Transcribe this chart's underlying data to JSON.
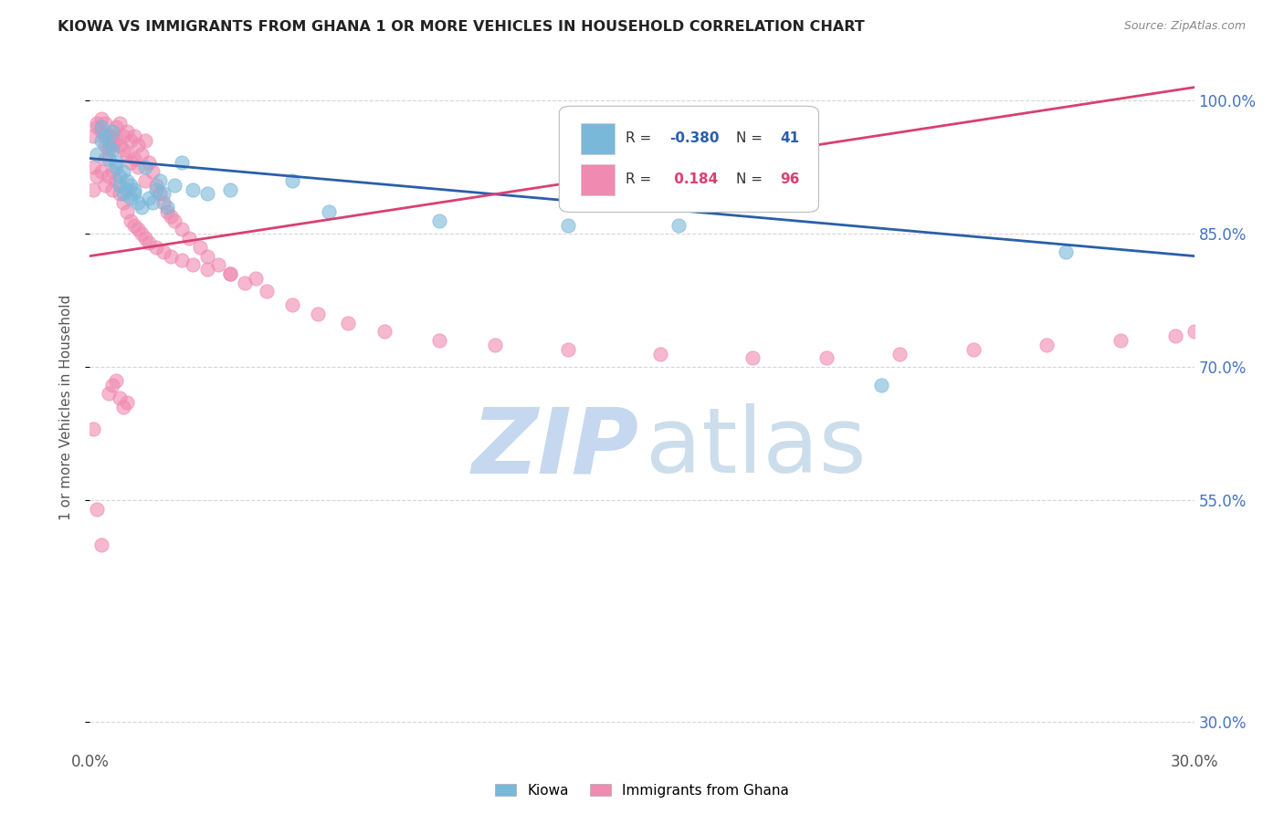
{
  "title": "KIOWA VS IMMIGRANTS FROM GHANA 1 OR MORE VEHICLES IN HOUSEHOLD CORRELATION CHART",
  "source": "Source: ZipAtlas.com",
  "ylabel": "1 or more Vehicles in Household",
  "ytick_vals": [
    30.0,
    55.0,
    70.0,
    85.0,
    100.0
  ],
  "ytick_labels": [
    "30.0%",
    "55.0%",
    "70.0%",
    "85.0%",
    "100.0%"
  ],
  "xmin": 0.0,
  "xmax": 0.3,
  "ymin": 27.0,
  "ymax": 104.0,
  "legend_r_blue": "-0.380",
  "legend_n_blue": "41",
  "legend_r_pink": "0.184",
  "legend_n_pink": "96",
  "blue_color": "#7ab8d9",
  "pink_color": "#f08ab0",
  "blue_line_color": "#2a5faa",
  "pink_line_color": "#d94070",
  "blue_line_y0": 93.5,
  "blue_line_y1": 82.5,
  "pink_line_y0": 82.5,
  "pink_line_y1": 101.5,
  "ytick_color": "#4472c4",
  "xtick_color": "#555555",
  "ylabel_color": "#555555",
  "title_color": "#222222",
  "source_color": "#888888",
  "grid_color": "#cccccc",
  "watermark_zip_color": "#c5d8f0",
  "watermark_atlas_color": "#9bbcd8",
  "legend_border_color": "#bbbbbb",
  "blue_scatter_x": [
    0.002,
    0.003,
    0.003,
    0.004,
    0.005,
    0.005,
    0.006,
    0.006,
    0.007,
    0.007,
    0.008,
    0.008,
    0.009,
    0.009,
    0.01,
    0.01,
    0.011,
    0.011,
    0.012,
    0.012,
    0.013,
    0.014,
    0.015,
    0.016,
    0.017,
    0.018,
    0.019,
    0.02,
    0.021,
    0.023,
    0.025,
    0.028,
    0.032,
    0.038,
    0.055,
    0.065,
    0.095,
    0.13,
    0.16,
    0.215,
    0.265
  ],
  "blue_scatter_y": [
    94.0,
    95.5,
    97.0,
    96.0,
    95.0,
    93.5,
    96.5,
    94.5,
    93.0,
    92.5,
    91.5,
    90.5,
    92.0,
    89.5,
    91.0,
    90.0,
    90.5,
    89.0,
    90.0,
    89.5,
    88.5,
    88.0,
    92.5,
    89.0,
    88.5,
    90.0,
    91.0,
    89.5,
    88.0,
    90.5,
    93.0,
    90.0,
    89.5,
    90.0,
    91.0,
    87.5,
    86.5,
    86.0,
    86.0,
    68.0,
    83.0
  ],
  "pink_scatter_x": [
    0.001,
    0.001,
    0.002,
    0.002,
    0.002,
    0.003,
    0.003,
    0.003,
    0.004,
    0.004,
    0.005,
    0.005,
    0.005,
    0.006,
    0.006,
    0.006,
    0.007,
    0.007,
    0.007,
    0.008,
    0.008,
    0.008,
    0.009,
    0.009,
    0.009,
    0.01,
    0.01,
    0.01,
    0.011,
    0.011,
    0.012,
    0.012,
    0.013,
    0.013,
    0.014,
    0.015,
    0.015,
    0.016,
    0.017,
    0.018,
    0.019,
    0.02,
    0.021,
    0.022,
    0.023,
    0.025,
    0.027,
    0.03,
    0.032,
    0.035,
    0.038,
    0.042,
    0.048,
    0.055,
    0.062,
    0.07,
    0.08,
    0.095,
    0.11,
    0.13,
    0.155,
    0.18,
    0.2,
    0.22,
    0.24,
    0.26,
    0.28,
    0.295,
    0.3,
    0.001,
    0.001,
    0.002,
    0.003,
    0.004,
    0.004,
    0.005,
    0.006,
    0.006,
    0.007,
    0.008,
    0.009,
    0.01,
    0.011,
    0.012,
    0.013,
    0.014,
    0.015,
    0.016,
    0.018,
    0.02,
    0.022,
    0.025,
    0.028,
    0.032,
    0.038,
    0.045
  ],
  "pink_scatter_y": [
    63.0,
    96.0,
    97.0,
    97.5,
    54.0,
    98.0,
    96.5,
    50.0,
    95.0,
    97.5,
    96.0,
    94.5,
    67.0,
    96.0,
    95.0,
    68.0,
    97.0,
    95.5,
    68.5,
    97.5,
    95.0,
    66.5,
    96.0,
    94.5,
    65.5,
    96.5,
    94.0,
    66.0,
    95.5,
    93.0,
    96.0,
    93.5,
    95.0,
    92.5,
    94.0,
    95.5,
    91.0,
    93.0,
    92.0,
    90.5,
    89.5,
    88.5,
    87.5,
    87.0,
    86.5,
    85.5,
    84.5,
    83.5,
    82.5,
    81.5,
    80.5,
    79.5,
    78.5,
    77.0,
    76.0,
    75.0,
    74.0,
    73.0,
    72.5,
    72.0,
    71.5,
    71.0,
    71.0,
    71.5,
    72.0,
    72.5,
    73.0,
    73.5,
    74.0,
    90.0,
    92.5,
    91.5,
    92.0,
    93.5,
    90.5,
    91.5,
    90.0,
    92.0,
    91.0,
    89.5,
    88.5,
    87.5,
    86.5,
    86.0,
    85.5,
    85.0,
    84.5,
    84.0,
    83.5,
    83.0,
    82.5,
    82.0,
    81.5,
    81.0,
    80.5,
    80.0
  ]
}
